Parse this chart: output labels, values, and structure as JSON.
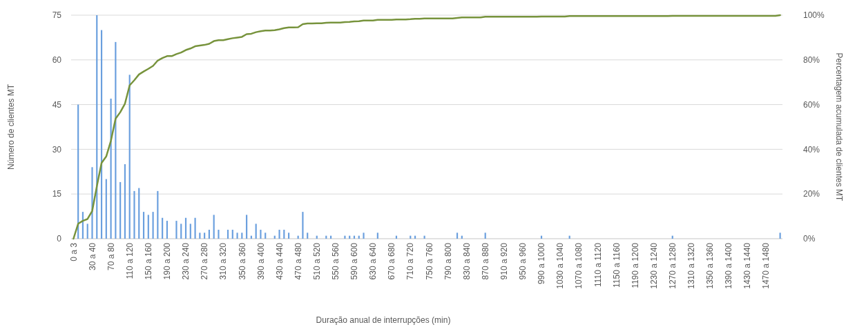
{
  "chart_data": {
    "type": "bar",
    "xlabel": "Duração anual de interrupções (min)",
    "ylabel": "Número de clientes MT",
    "y2label": "Percentagem acumulada de clientes MT",
    "categories": [
      "0 a 3",
      null,
      null,
      null,
      "30 a 40",
      null,
      null,
      null,
      "70 a 80",
      null,
      null,
      null,
      "110 a 120",
      null,
      null,
      null,
      "150 a 160",
      null,
      null,
      null,
      "190 a 200",
      null,
      null,
      null,
      "230 a 240",
      null,
      null,
      null,
      "270 a 280",
      null,
      null,
      null,
      "310 a 320",
      null,
      null,
      null,
      "350 a 360",
      null,
      null,
      null,
      "390 a 400",
      null,
      null,
      null,
      "430 a 440",
      null,
      null,
      null,
      "470 a 480",
      null,
      null,
      null,
      "510 a 520",
      null,
      null,
      null,
      "550 a 560",
      null,
      null,
      null,
      "590 a 600",
      null,
      null,
      null,
      "630 a 640",
      null,
      null,
      null,
      "670 a 680",
      null,
      null,
      null,
      "710 a 720",
      null,
      null,
      null,
      "750 a 760",
      null,
      null,
      null,
      "790 a 800",
      null,
      null,
      null,
      "830 a 840",
      null,
      null,
      null,
      "870 a 880",
      null,
      null,
      null,
      "910 a 920",
      null,
      null,
      null,
      "950 a 960",
      null,
      null,
      null,
      "990 a 1000",
      null,
      null,
      null,
      "1030 a 1040",
      null,
      null,
      null,
      "1070 a 1080",
      null,
      null,
      null,
      "1110 a 1120",
      null,
      null,
      null,
      "1150 a 1160",
      null,
      null,
      null,
      "1190 a 1200",
      null,
      null,
      null,
      "1230 a 1240",
      null,
      null,
      null,
      "1270 a 1280",
      null,
      null,
      null,
      "1310 a 1320",
      null,
      null,
      null,
      "1350 a 1360",
      null,
      null,
      null,
      "1390 a 1400",
      null,
      null,
      null,
      "1430 a 1440",
      null,
      null,
      null,
      "1470 a 1480",
      null,
      null,
      null
    ],
    "series": [
      {
        "color": "#6a9fde",
        "values": [
          0,
          45,
          9,
          5,
          24,
          75,
          70,
          20,
          47,
          66,
          19,
          25,
          55,
          16,
          17,
          9,
          8,
          9,
          16,
          7,
          6,
          0,
          6,
          5,
          7,
          5,
          7,
          2,
          2,
          3,
          8,
          3,
          0,
          3,
          3,
          2,
          2,
          8,
          1,
          5,
          3,
          2,
          0,
          1,
          3,
          3,
          2,
          0,
          1,
          9,
          2,
          0,
          1,
          0,
          1,
          1,
          0,
          0,
          1,
          1,
          1,
          1,
          2,
          0,
          0,
          2,
          0,
          0,
          0,
          1,
          0,
          0,
          1,
          1,
          0,
          1,
          0,
          0,
          0,
          0,
          0,
          0,
          2,
          1,
          0,
          0,
          0,
          0,
          2,
          0,
          0,
          0,
          0,
          0,
          0,
          0,
          0,
          0,
          0,
          0,
          1,
          0,
          0,
          0,
          0,
          0,
          1,
          0,
          0,
          0,
          0,
          0,
          0,
          0,
          0,
          0,
          0,
          0,
          0,
          0,
          0,
          0,
          0,
          0,
          0,
          0,
          0,
          0,
          1,
          0,
          0,
          0,
          0,
          0,
          0,
          0,
          0,
          0,
          0,
          0,
          0,
          0,
          0,
          0,
          0,
          0,
          0,
          0,
          0,
          0,
          0,
          2
        ]
      },
      {
        "type": "line",
        "axis": "y2",
        "color": "#77933c",
        "values": [
          0,
          6.7,
          8.0,
          8.8,
          12.4,
          23.5,
          33.9,
          36.8,
          43.8,
          53.7,
          56.6,
          60.4,
          68.6,
          70.9,
          73.5,
          74.8,
          76.0,
          77.3,
          79.7,
          80.8,
          81.7,
          81.7,
          82.6,
          83.3,
          84.4,
          85.1,
          86.1,
          86.4,
          86.7,
          87.2,
          88.4,
          88.8,
          88.8,
          89.3,
          89.7,
          90.0,
          90.3,
          91.5,
          91.7,
          92.4,
          92.8,
          93.1,
          93.1,
          93.3,
          93.7,
          94.2,
          94.5,
          94.5,
          94.6,
          96.0,
          96.3,
          96.3,
          96.4,
          96.4,
          96.6,
          96.7,
          96.7,
          96.7,
          96.9,
          97.0,
          97.2,
          97.3,
          97.6,
          97.6,
          97.6,
          97.9,
          97.9,
          97.9,
          97.9,
          98.1,
          98.1,
          98.1,
          98.2,
          98.4,
          98.4,
          98.5,
          98.5,
          98.5,
          98.5,
          98.5,
          98.5,
          98.5,
          98.8,
          99.0,
          99.0,
          99.0,
          99.0,
          99.0,
          99.3,
          99.3,
          99.3,
          99.3,
          99.3,
          99.3,
          99.3,
          99.3,
          99.3,
          99.3,
          99.3,
          99.3,
          99.4,
          99.4,
          99.4,
          99.4,
          99.4,
          99.4,
          99.6,
          99.6,
          99.6,
          99.6,
          99.6,
          99.6,
          99.6,
          99.6,
          99.6,
          99.6,
          99.6,
          99.6,
          99.6,
          99.6,
          99.6,
          99.6,
          99.6,
          99.6,
          99.6,
          99.6,
          99.6,
          99.6,
          99.7,
          99.7,
          99.7,
          99.7,
          99.7,
          99.7,
          99.7,
          99.7,
          99.7,
          99.7,
          99.7,
          99.7,
          99.7,
          99.7,
          99.7,
          99.7,
          99.7,
          99.7,
          99.7,
          99.7,
          99.7,
          99.7,
          99.7,
          100
        ]
      }
    ],
    "ylim": [
      0,
      75
    ],
    "yticks": [
      0,
      15,
      30,
      45,
      60,
      75
    ],
    "y2lim": [
      0,
      100
    ],
    "y2ticks": [
      {
        "value": 0,
        "label": "0%"
      },
      {
        "value": 20,
        "label": "20%"
      },
      {
        "value": 40,
        "label": "40%"
      },
      {
        "value": 60,
        "label": "60%"
      },
      {
        "value": 80,
        "label": "80%"
      },
      {
        "value": 100,
        "label": "100%"
      }
    ],
    "grid": "y"
  }
}
